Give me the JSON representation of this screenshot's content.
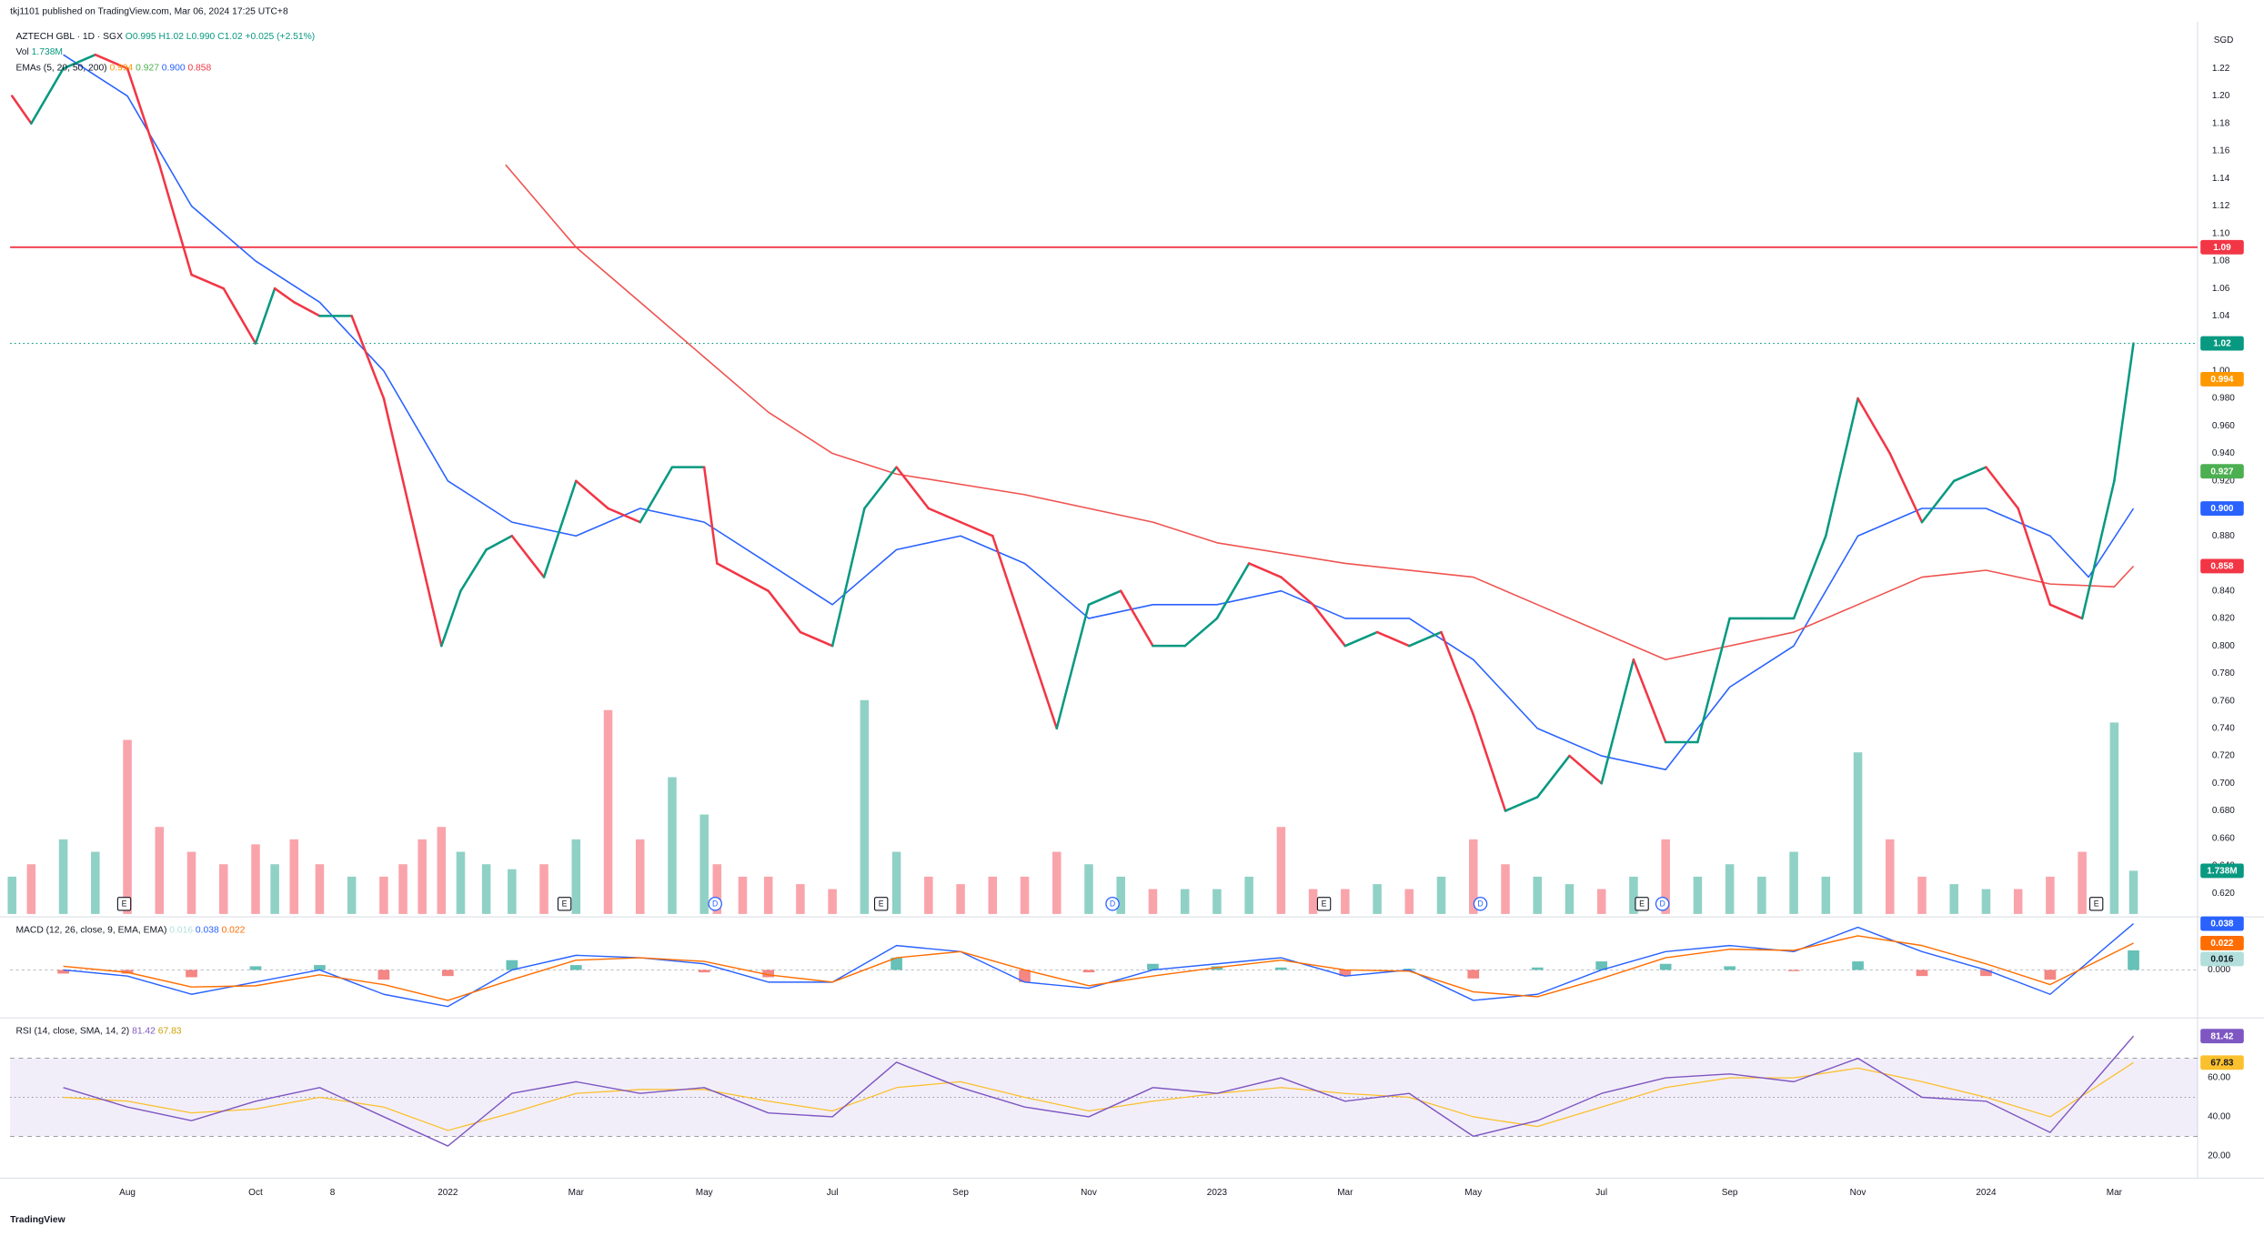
{
  "chart_data": {
    "type": "line",
    "publisher": "tkj1101 published on TradingView.com, Mar 06, 2024 17:25 UTC+8",
    "title": "AZTECH GBL · 1D · SGX",
    "ohlc": "O0.995 H1.02 L0.990 C1.02 +0.025 (+2.51%)",
    "currency": "SGD",
    "footer": "TradingView",
    "up_color": "#089981",
    "down_color": "#f23645",
    "xlim": [
      -0.83,
      33.3
    ],
    "xticks": [
      {
        "value": 1,
        "label": "Aug"
      },
      {
        "value": 3,
        "label": "Oct"
      },
      {
        "value": 4.2,
        "label": "8"
      },
      {
        "value": 6,
        "label": "2022"
      },
      {
        "value": 8,
        "label": "Mar"
      },
      {
        "value": 10,
        "label": "May"
      },
      {
        "value": 12,
        "label": "Jul"
      },
      {
        "value": 14,
        "label": "Sep"
      },
      {
        "value": 16,
        "label": "Nov"
      },
      {
        "value": 18,
        "label": "2023"
      },
      {
        "value": 20,
        "label": "Mar"
      },
      {
        "value": 22,
        "label": "May"
      },
      {
        "value": 24,
        "label": "Jul"
      },
      {
        "value": 26,
        "label": "Sep"
      },
      {
        "value": 28,
        "label": "Nov"
      },
      {
        "value": 30,
        "label": "2024"
      },
      {
        "value": 32,
        "label": "Mar"
      }
    ],
    "ylim": [
      0.605,
      1.254
    ],
    "yticks": [
      {
        "value": 1.22,
        "label": "1.22"
      },
      {
        "value": 1.2,
        "label": "1.20"
      },
      {
        "value": 1.18,
        "label": "1.18"
      },
      {
        "value": 1.16,
        "label": "1.16"
      },
      {
        "value": 1.14,
        "label": "1.14"
      },
      {
        "value": 1.12,
        "label": "1.12"
      },
      {
        "value": 1.1,
        "label": "1.10"
      },
      {
        "value": 1.08,
        "label": "1.08"
      },
      {
        "value": 1.06,
        "label": "1.06"
      },
      {
        "value": 1.04,
        "label": "1.04"
      },
      {
        "value": 1.0,
        "label": "1.00"
      },
      {
        "value": 0.98,
        "label": "0.980"
      },
      {
        "value": 0.96,
        "label": "0.960"
      },
      {
        "value": 0.94,
        "label": "0.940"
      },
      {
        "value": 0.92,
        "label": "0.920"
      },
      {
        "value": 0.88,
        "label": "0.880"
      },
      {
        "value": 0.84,
        "label": "0.840"
      },
      {
        "value": 0.82,
        "label": "0.820"
      },
      {
        "value": 0.8,
        "label": "0.800"
      },
      {
        "value": 0.78,
        "label": "0.780"
      },
      {
        "value": 0.76,
        "label": "0.760"
      },
      {
        "value": 0.74,
        "label": "0.740"
      },
      {
        "value": 0.72,
        "label": "0.720"
      },
      {
        "value": 0.7,
        "label": "0.700"
      },
      {
        "value": 0.68,
        "label": "0.680"
      },
      {
        "value": 0.66,
        "label": "0.660"
      },
      {
        "value": 0.64,
        "label": "0.640"
      },
      {
        "value": 0.62,
        "label": "0.620"
      }
    ],
    "x": [
      -0.8,
      -0.5,
      0,
      0.5,
      1,
      1.5,
      2,
      2.5,
      3,
      3.3,
      3.6,
      4,
      4.5,
      5,
      5.3,
      5.6,
      5.9,
      6.2,
      6.6,
      7,
      7.5,
      8,
      8.5,
      9,
      9.5,
      10,
      10.2,
      10.6,
      11,
      11.5,
      12,
      12.5,
      13,
      13.5,
      14,
      14.5,
      15,
      15.5,
      16,
      16.5,
      17,
      17.5,
      18,
      18.5,
      19,
      19.5,
      20,
      20.5,
      21,
      21.5,
      22,
      22.5,
      23,
      23.5,
      24,
      24.5,
      25,
      25.5,
      26,
      26.5,
      27,
      27.5,
      28,
      28.5,
      29,
      29.5,
      30,
      30.5,
      31,
      31.5,
      32,
      32.3
    ],
    "series": [
      {
        "name": "Close",
        "values": [
          1.2,
          1.18,
          1.22,
          1.23,
          1.22,
          1.15,
          1.07,
          1.06,
          1.02,
          1.06,
          1.05,
          1.04,
          1.04,
          0.98,
          0.92,
          0.86,
          0.8,
          0.84,
          0.87,
          0.88,
          0.85,
          0.92,
          0.9,
          0.89,
          0.93,
          0.93,
          0.86,
          0.85,
          0.84,
          0.81,
          0.8,
          0.9,
          0.93,
          0.9,
          0.89,
          0.88,
          0.81,
          0.74,
          0.83,
          0.84,
          0.8,
          0.8,
          0.82,
          0.86,
          0.85,
          0.83,
          0.8,
          0.81,
          0.8,
          0.81,
          0.75,
          0.68,
          0.69,
          0.72,
          0.7,
          0.79,
          0.73,
          0.73,
          0.82,
          0.82,
          0.82,
          0.88,
          0.98,
          0.94,
          0.89,
          0.92,
          0.93,
          0.9,
          0.83,
          0.82,
          0.92,
          1.02
        ]
      }
    ],
    "last_price": 1.02,
    "last_price_color": "#089981",
    "hline": {
      "value": 1.09,
      "color": "#f23645"
    },
    "volume": {
      "name": "Vol",
      "label": "1.738M",
      "ylim": [
        0,
        9
      ],
      "values": [
        1.5,
        2.0,
        3.0,
        2.5,
        7.0,
        3.5,
        2.5,
        2.0,
        2.8,
        2.0,
        3.0,
        2.0,
        1.5,
        1.5,
        2.0,
        3.0,
        3.5,
        2.5,
        2.0,
        1.8,
        2.0,
        3.0,
        8.2,
        3.0,
        5.5,
        4.0,
        2.0,
        1.5,
        1.5,
        1.2,
        1.0,
        8.6,
        2.5,
        1.5,
        1.2,
        1.5,
        1.5,
        2.5,
        2.0,
        1.5,
        1.0,
        1.0,
        1.0,
        1.5,
        3.5,
        1.0,
        1.0,
        1.2,
        1.0,
        1.5,
        3.0,
        2.0,
        1.5,
        1.2,
        1.0,
        1.5,
        3.0,
        1.5,
        2.0,
        1.5,
        2.5,
        1.5,
        6.5,
        3.0,
        1.5,
        1.2,
        1.0,
        1.0,
        1.5,
        2.5,
        7.7,
        1.738
      ]
    },
    "ema": {
      "name": "EMAs (5, 20, 50, 200)",
      "values": [
        0.994,
        0.927,
        0.9,
        0.858
      ],
      "value_labels": [
        "0.994",
        "0.927",
        "0.900",
        "0.858"
      ],
      "colors": [
        "#ff9800",
        "#4caf50",
        "#2962ff",
        "#f23645"
      ],
      "lines": [
        {
          "color": "#2962ff",
          "x": [
            0,
            1,
            2,
            3,
            4,
            5,
            6,
            7,
            8,
            9,
            10,
            11,
            12,
            13,
            14,
            15,
            16,
            17,
            18,
            19,
            20,
            21,
            22,
            23,
            24,
            25,
            26,
            27,
            28,
            29,
            30,
            31,
            31.6,
            32.3
          ],
          "values": [
            1.23,
            1.2,
            1.12,
            1.08,
            1.05,
            1.0,
            0.92,
            0.89,
            0.88,
            0.9,
            0.89,
            0.86,
            0.83,
            0.87,
            0.88,
            0.86,
            0.82,
            0.83,
            0.83,
            0.84,
            0.82,
            0.82,
            0.79,
            0.74,
            0.72,
            0.71,
            0.77,
            0.8,
            0.88,
            0.9,
            0.9,
            0.88,
            0.85,
            0.9
          ]
        },
        {
          "color": "#ef5350",
          "x": [
            6.9,
            8,
            9,
            10,
            11,
            12,
            13,
            15,
            17,
            18,
            20,
            22,
            23,
            24,
            25,
            26,
            27,
            28,
            29,
            30,
            31,
            32,
            32.3
          ],
          "values": [
            1.15,
            1.09,
            1.05,
            1.01,
            0.97,
            0.94,
            0.925,
            0.91,
            0.89,
            0.875,
            0.86,
            0.85,
            0.83,
            0.81,
            0.79,
            0.8,
            0.81,
            0.83,
            0.85,
            0.855,
            0.845,
            0.843,
            0.858
          ]
        }
      ]
    },
    "events": [
      {
        "x": 0.95,
        "label": "E"
      },
      {
        "x": 7.82,
        "label": "E"
      },
      {
        "x": 10.17,
        "label": "D"
      },
      {
        "x": 12.76,
        "label": "E"
      },
      {
        "x": 16.37,
        "label": "D"
      },
      {
        "x": 19.67,
        "label": "E"
      },
      {
        "x": 22.11,
        "label": "D"
      },
      {
        "x": 24.63,
        "label": "E"
      },
      {
        "x": 24.95,
        "label": "D"
      },
      {
        "x": 31.72,
        "label": "E"
      }
    ],
    "macd": {
      "name": "MACD (12, 26, close, 9, EMA, EMA)",
      "ylim": [
        -0.037,
        0.04
      ],
      "yticks": [
        {
          "value": 0,
          "label": "0.000"
        }
      ],
      "x": [
        0,
        1,
        2,
        3,
        4,
        5,
        6,
        7,
        8,
        9,
        10,
        11,
        12,
        13,
        14,
        15,
        16,
        17,
        18,
        19,
        20,
        21,
        22,
        23,
        24,
        25,
        26,
        27,
        28,
        29,
        30,
        31,
        32.3
      ],
      "histogram": {
        "values": [
          -0.003,
          -0.003,
          -0.006,
          0.003,
          0.004,
          -0.008,
          -0.005,
          0.008,
          0.004,
          0.0,
          -0.002,
          -0.006,
          0.0,
          0.01,
          0.0,
          -0.01,
          -0.002,
          0.005,
          0.003,
          0.002,
          -0.005,
          0.001,
          -0.007,
          0.002,
          0.007,
          0.005,
          0.003,
          -0.001,
          0.007,
          -0.005,
          -0.005,
          -0.008,
          0.016
        ],
        "color": "#26a69a"
      },
      "macd_line": {
        "values": [
          0.0,
          -0.005,
          -0.02,
          -0.01,
          0.0,
          -0.02,
          -0.03,
          0.0,
          0.012,
          0.01,
          0.005,
          -0.01,
          -0.01,
          0.02,
          0.015,
          -0.01,
          -0.015,
          0.0,
          0.005,
          0.01,
          -0.005,
          0.0,
          -0.025,
          -0.02,
          0.0,
          0.015,
          0.02,
          0.015,
          0.035,
          0.015,
          0.0,
          -0.02,
          0.038
        ],
        "color": "#2962ff"
      },
      "signal": {
        "values": [
          0.003,
          -0.002,
          -0.014,
          -0.013,
          -0.004,
          -0.012,
          -0.025,
          -0.008,
          0.008,
          0.01,
          0.007,
          -0.004,
          -0.01,
          0.01,
          0.015,
          0.0,
          -0.013,
          -0.005,
          0.002,
          0.008,
          0.0,
          -0.001,
          -0.018,
          -0.022,
          -0.007,
          0.01,
          0.017,
          0.016,
          0.028,
          0.02,
          0.005,
          -0.012,
          0.022
        ],
        "color": "#ff6d00"
      }
    },
    "rsi": {
      "name": "RSI (14, close, SMA, 14, 2)",
      "ylim": [
        10,
        90
      ],
      "yticks": [
        {
          "value": 60,
          "label": "60.00"
        },
        {
          "value": 40,
          "label": "40.00"
        },
        {
          "value": 20,
          "label": "20.00"
        }
      ],
      "bands": [
        70,
        50,
        30
      ],
      "x": [
        0,
        1,
        2,
        3,
        4,
        5,
        6,
        7,
        8,
        9,
        10,
        11,
        12,
        13,
        14,
        15,
        16,
        17,
        18,
        19,
        20,
        21,
        22,
        23,
        24,
        25,
        26,
        27,
        28,
        29,
        30,
        31,
        32.3
      ],
      "rsi_line": {
        "values": [
          55,
          45,
          38,
          48,
          55,
          40,
          25,
          52,
          58,
          52,
          55,
          42,
          40,
          68,
          55,
          45,
          40,
          55,
          52,
          60,
          48,
          52,
          30,
          38,
          52,
          60,
          62,
          58,
          70,
          50,
          48,
          32,
          81.42
        ],
        "color": "#7e57c2"
      },
      "ma": {
        "values": [
          50,
          48,
          42,
          44,
          50,
          45,
          33,
          42,
          52,
          54,
          54,
          48,
          43,
          55,
          58,
          50,
          43,
          48,
          52,
          55,
          52,
          50,
          40,
          35,
          45,
          55,
          60,
          60,
          65,
          58,
          50,
          40,
          67.83
        ],
        "color": "#fbc02d"
      }
    }
  }
}
